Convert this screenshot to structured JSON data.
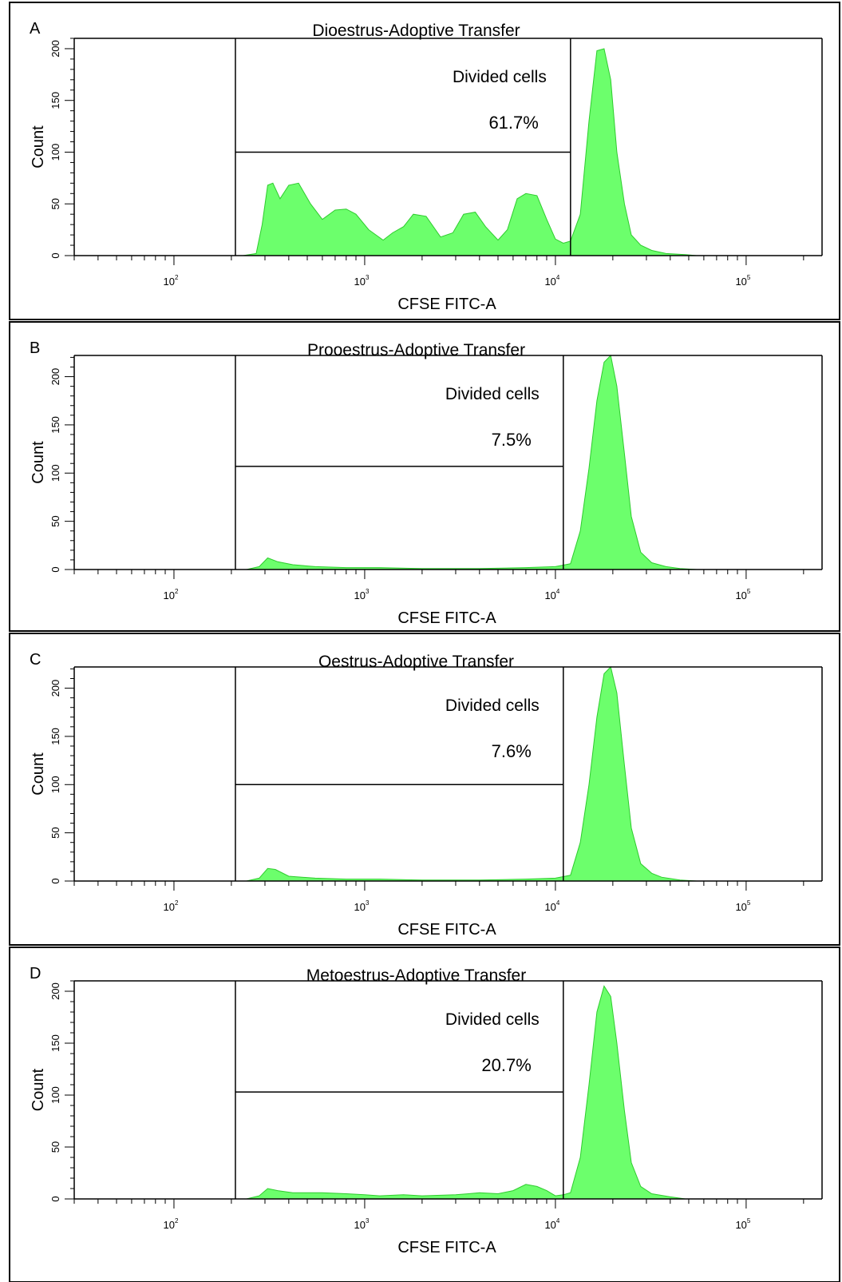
{
  "colors": {
    "fill": "#6cff6c",
    "stroke": "#2ecc2e",
    "axis": "#000000"
  },
  "chart_data": [
    {
      "type": "area",
      "panel": "A",
      "title": "Dioestrus-Adoptive Transfer",
      "xlabel": "CFSE FITC-A",
      "ylabel": "Count",
      "xscale": "log",
      "xlim": [
        30,
        250000
      ],
      "ylim": [
        0,
        210
      ],
      "yticks": [
        "0",
        "50",
        "100",
        "150",
        "200"
      ],
      "xticks": [
        {
          "base": "10",
          "exp": "2",
          "value": 100
        },
        {
          "base": "10",
          "exp": "3",
          "value": 1000
        },
        {
          "base": "10",
          "exp": "4",
          "value": 10000
        },
        {
          "base": "10",
          "exp": "5",
          "value": 100000
        }
      ],
      "gate": {
        "label": "Divided cells",
        "percent": "61.7%",
        "x_start": 210,
        "x_end": 12000,
        "y": 100
      },
      "points": [
        [
          230,
          0
        ],
        [
          270,
          2
        ],
        [
          290,
          30
        ],
        [
          310,
          68
        ],
        [
          330,
          70
        ],
        [
          360,
          55
        ],
        [
          400,
          68
        ],
        [
          450,
          70
        ],
        [
          520,
          50
        ],
        [
          600,
          35
        ],
        [
          700,
          44
        ],
        [
          800,
          45
        ],
        [
          900,
          40
        ],
        [
          1050,
          25
        ],
        [
          1250,
          15
        ],
        [
          1400,
          22
        ],
        [
          1600,
          28
        ],
        [
          1800,
          40
        ],
        [
          2100,
          38
        ],
        [
          2500,
          18
        ],
        [
          2900,
          22
        ],
        [
          3300,
          40
        ],
        [
          3800,
          42
        ],
        [
          4300,
          28
        ],
        [
          5000,
          15
        ],
        [
          5600,
          25
        ],
        [
          6300,
          55
        ],
        [
          7000,
          60
        ],
        [
          8000,
          58
        ],
        [
          9000,
          35
        ],
        [
          10000,
          16
        ],
        [
          11000,
          12
        ],
        [
          12000,
          14
        ],
        [
          13500,
          40
        ],
        [
          15000,
          130
        ],
        [
          16500,
          198
        ],
        [
          18000,
          200
        ],
        [
          19500,
          170
        ],
        [
          21000,
          100
        ],
        [
          23000,
          50
        ],
        [
          25000,
          20
        ],
        [
          28000,
          10
        ],
        [
          32000,
          5
        ],
        [
          38000,
          2
        ],
        [
          48000,
          1
        ],
        [
          55000,
          0
        ]
      ]
    },
    {
      "type": "area",
      "panel": "B",
      "title": "Prooestrus-Adoptive Transfer",
      "xlabel": "CFSE FITC-A",
      "ylabel": "Count",
      "xscale": "log",
      "xlim": [
        30,
        250000
      ],
      "ylim": [
        0,
        222
      ],
      "yticks": [
        "0",
        "50",
        "100",
        "150",
        "200"
      ],
      "xticks": [
        {
          "base": "10",
          "exp": "2",
          "value": 100
        },
        {
          "base": "10",
          "exp": "3",
          "value": 1000
        },
        {
          "base": "10",
          "exp": "4",
          "value": 10000
        },
        {
          "base": "10",
          "exp": "5",
          "value": 100000
        }
      ],
      "gate": {
        "label": "Divided cells",
        "percent": "7.5%",
        "x_start": 210,
        "x_end": 11000,
        "y": 107
      },
      "points": [
        [
          240,
          0
        ],
        [
          280,
          3
        ],
        [
          310,
          12
        ],
        [
          350,
          8
        ],
        [
          420,
          5
        ],
        [
          550,
          3
        ],
        [
          800,
          2
        ],
        [
          1200,
          2
        ],
        [
          2000,
          1
        ],
        [
          4000,
          1
        ],
        [
          7000,
          2
        ],
        [
          10000,
          3
        ],
        [
          12000,
          6
        ],
        [
          13500,
          40
        ],
        [
          15000,
          105
        ],
        [
          16500,
          175
        ],
        [
          18000,
          215
        ],
        [
          19500,
          222
        ],
        [
          21000,
          190
        ],
        [
          23000,
          120
        ],
        [
          25000,
          55
        ],
        [
          28000,
          18
        ],
        [
          32000,
          7
        ],
        [
          38000,
          3
        ],
        [
          45000,
          1
        ],
        [
          55000,
          0
        ]
      ]
    },
    {
      "type": "area",
      "panel": "C",
      "title": "Oestrus-Adoptive Transfer",
      "xlabel": "CFSE FITC-A",
      "ylabel": "Count",
      "xscale": "log",
      "xlim": [
        30,
        250000
      ],
      "ylim": [
        0,
        222
      ],
      "yticks": [
        "0",
        "50",
        "100",
        "150",
        "200"
      ],
      "xticks": [
        {
          "base": "10",
          "exp": "2",
          "value": 100
        },
        {
          "base": "10",
          "exp": "3",
          "value": 1000
        },
        {
          "base": "10",
          "exp": "4",
          "value": 10000
        },
        {
          "base": "10",
          "exp": "5",
          "value": 100000
        }
      ],
      "gate": {
        "label": "Divided cells",
        "percent": "7.6%",
        "x_start": 210,
        "x_end": 11000,
        "y": 100
      },
      "points": [
        [
          240,
          0
        ],
        [
          280,
          3
        ],
        [
          310,
          13
        ],
        [
          340,
          12
        ],
        [
          400,
          5
        ],
        [
          550,
          3
        ],
        [
          800,
          2
        ],
        [
          1200,
          2
        ],
        [
          2000,
          1
        ],
        [
          4000,
          1
        ],
        [
          7000,
          2
        ],
        [
          10000,
          3
        ],
        [
          12000,
          6
        ],
        [
          13500,
          40
        ],
        [
          15000,
          100
        ],
        [
          16500,
          170
        ],
        [
          18000,
          215
        ],
        [
          19500,
          222
        ],
        [
          21000,
          195
        ],
        [
          23000,
          120
        ],
        [
          25000,
          55
        ],
        [
          28000,
          18
        ],
        [
          32000,
          8
        ],
        [
          36000,
          4
        ],
        [
          45000,
          1
        ],
        [
          55000,
          0
        ]
      ]
    },
    {
      "type": "area",
      "panel": "D",
      "title": "Metoestrus-Adoptive Transfer",
      "xlabel": "CFSE FITC-A",
      "ylabel": "Count",
      "xscale": "log",
      "xlim": [
        30,
        250000
      ],
      "ylim": [
        0,
        210
      ],
      "yticks": [
        "0",
        "50",
        "100",
        "150",
        "200"
      ],
      "xticks": [
        {
          "base": "10",
          "exp": "2",
          "value": 100
        },
        {
          "base": "10",
          "exp": "3",
          "value": 1000
        },
        {
          "base": "10",
          "exp": "4",
          "value": 10000
        },
        {
          "base": "10",
          "exp": "5",
          "value": 100000
        }
      ],
      "gate": {
        "label": "Divided cells",
        "percent": "20.7%",
        "x_start": 210,
        "x_end": 11000,
        "y": 103
      },
      "points": [
        [
          240,
          0
        ],
        [
          280,
          3
        ],
        [
          310,
          10
        ],
        [
          350,
          8
        ],
        [
          420,
          6
        ],
        [
          600,
          6
        ],
        [
          800,
          5
        ],
        [
          1000,
          4
        ],
        [
          1200,
          3
        ],
        [
          1600,
          4
        ],
        [
          2000,
          3
        ],
        [
          3000,
          4
        ],
        [
          3500,
          5
        ],
        [
          4000,
          6
        ],
        [
          5000,
          5
        ],
        [
          6000,
          8
        ],
        [
          7000,
          14
        ],
        [
          8000,
          12
        ],
        [
          9000,
          8
        ],
        [
          10000,
          3
        ],
        [
          11000,
          4
        ],
        [
          12000,
          6
        ],
        [
          13500,
          40
        ],
        [
          15000,
          110
        ],
        [
          16500,
          180
        ],
        [
          18000,
          205
        ],
        [
          19500,
          195
        ],
        [
          21000,
          150
        ],
        [
          23000,
          85
        ],
        [
          25000,
          35
        ],
        [
          28000,
          12
        ],
        [
          32000,
          5
        ],
        [
          40000,
          2
        ],
        [
          48000,
          0
        ]
      ]
    }
  ]
}
